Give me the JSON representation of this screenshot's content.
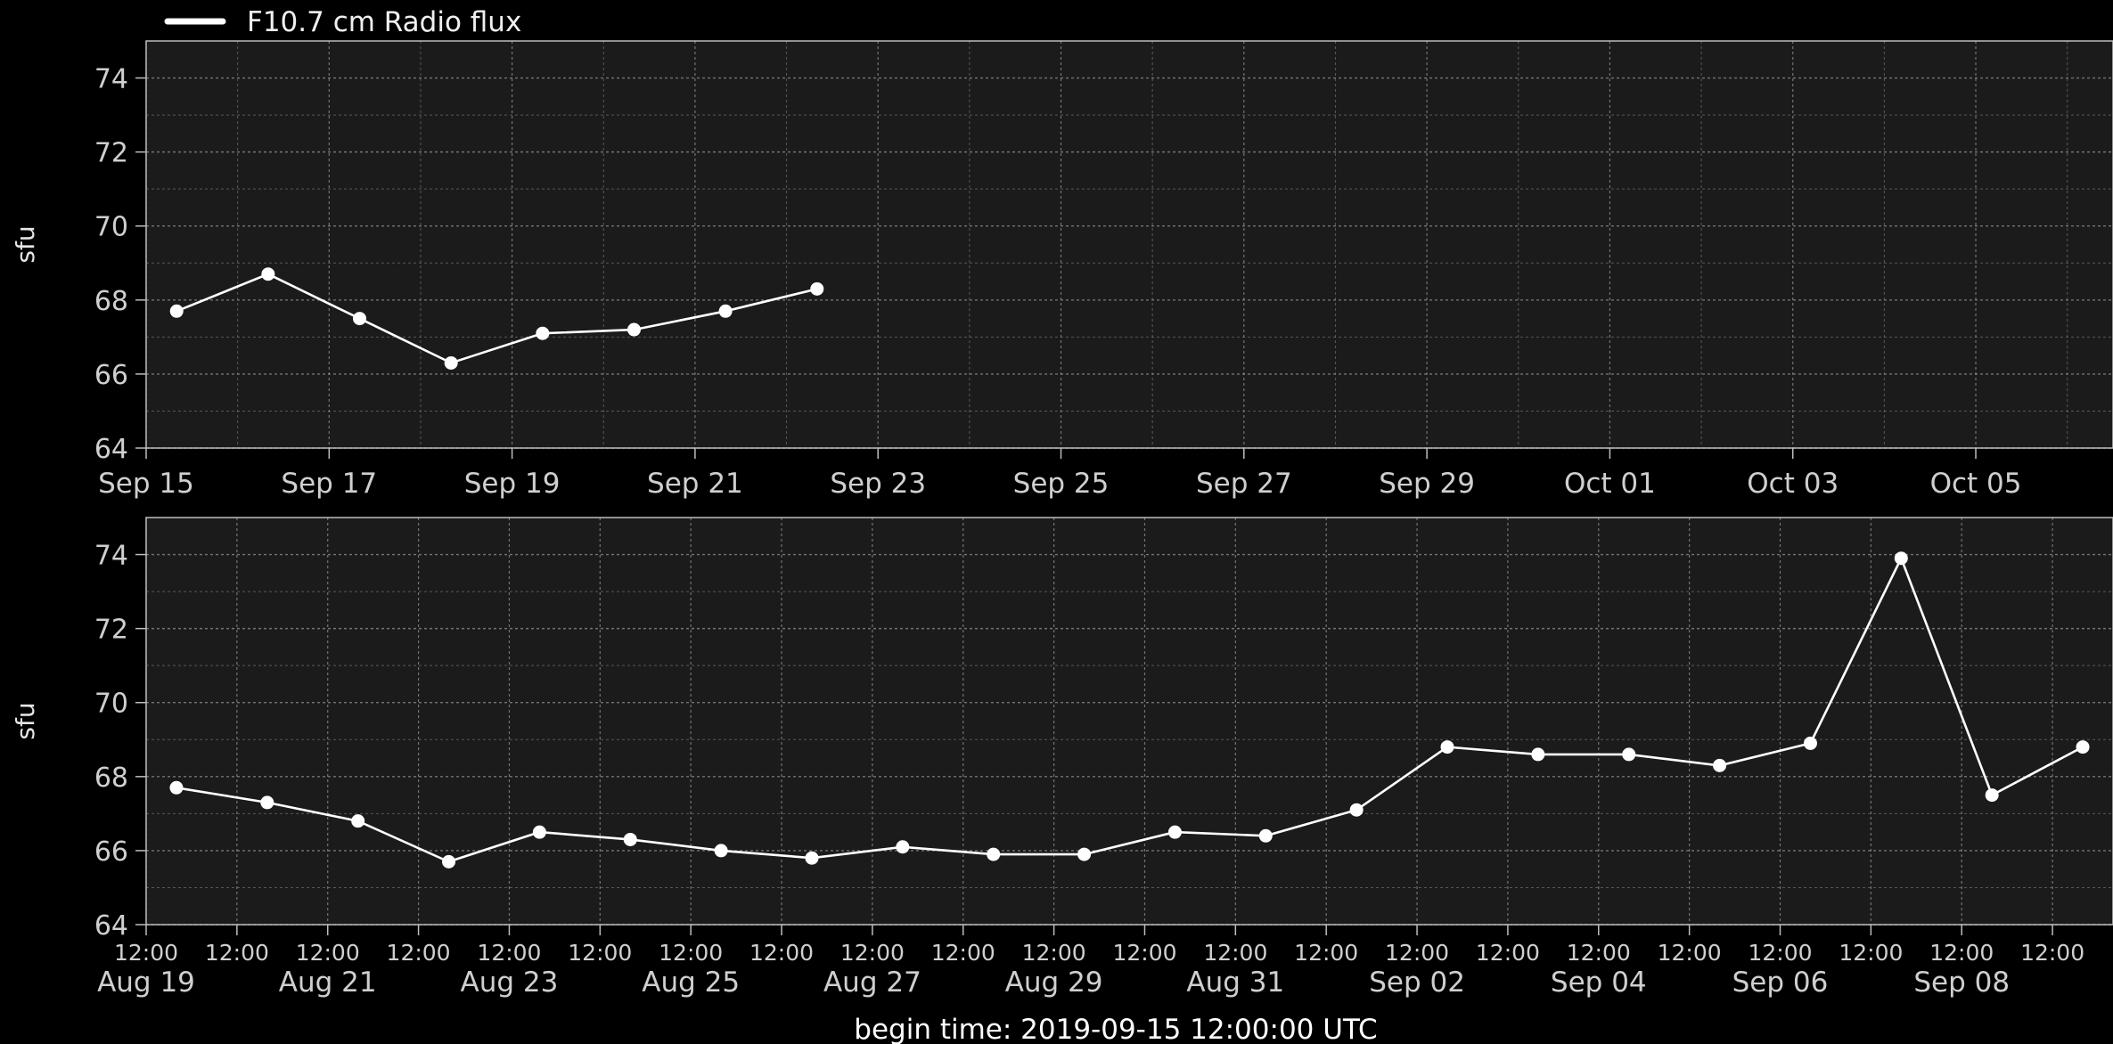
{
  "colors": {
    "background": "#000000",
    "plot_background": "#1b1b1b",
    "grid": "#8a8a8a",
    "series": "#ffffff",
    "frame": "#bdbdbd",
    "tick_text": "#cfcfcf"
  },
  "legend": {
    "label": "F10.7 cm Radio flux"
  },
  "footer": {
    "text": "begin time: 2019-09-15 12:00:00 UTC"
  },
  "chart_data": [
    {
      "type": "line",
      "title": "",
      "xlabel": "",
      "ylabel": "sfu",
      "xlim": [
        "2019-09-15 00:00",
        "2019-10-06 12:00"
      ],
      "ylim": [
        64,
        75
      ],
      "yticks": [
        64,
        66,
        68,
        70,
        72,
        74
      ],
      "xtick_labels": [
        "Sep 15",
        "Sep 17",
        "Sep 19",
        "Sep 21",
        "Sep 23",
        "Sep 25",
        "Sep 27",
        "Sep 29",
        "Oct 01",
        "Oct 03",
        "Oct 05"
      ],
      "grid": true,
      "legend_position": "top-left",
      "series": [
        {
          "name": "F10.7 cm Radio flux",
          "x": [
            "2019-09-15 08:00",
            "2019-09-16 08:00",
            "2019-09-17 08:00",
            "2019-09-18 08:00",
            "2019-09-19 08:00",
            "2019-09-20 08:00",
            "2019-09-21 08:00",
            "2019-09-22 08:00"
          ],
          "values": [
            67.7,
            68.7,
            67.5,
            66.3,
            67.1,
            67.2,
            67.7,
            68.3
          ]
        }
      ]
    },
    {
      "type": "line",
      "title": "",
      "xlabel": "",
      "ylabel": "sfu",
      "xlim": [
        "2019-08-19 00:00",
        "2019-09-09 16:00"
      ],
      "ylim": [
        64,
        75
      ],
      "yticks": [
        64,
        66,
        68,
        70,
        72,
        74
      ],
      "xtick_labels": [
        "12:00\nAug 19",
        "12:00",
        "12:00\nAug 21",
        "12:00",
        "12:00\nAug 23",
        "12:00",
        "12:00\nAug 25",
        "12:00",
        "12:00\nAug 27",
        "12:00",
        "12:00\nAug 29",
        "12:00",
        "12:00\nAug 31",
        "12:00",
        "12:00\nSep 02",
        "12:00",
        "12:00\nSep 04",
        "12:00",
        "12:00\nSep 06",
        "12:00",
        "12:00\nSep 08",
        "12:00"
      ],
      "grid": true,
      "series": [
        {
          "x": [
            "2019-08-19 08:00",
            "2019-08-20 08:00",
            "2019-08-21 08:00",
            "2019-08-22 08:00",
            "2019-08-23 08:00",
            "2019-08-24 08:00",
            "2019-08-25 08:00",
            "2019-08-26 08:00",
            "2019-08-27 08:00",
            "2019-08-28 08:00",
            "2019-08-29 08:00",
            "2019-08-30 08:00",
            "2019-08-31 08:00",
            "2019-09-01 08:00",
            "2019-09-02 08:00",
            "2019-09-03 08:00",
            "2019-09-04 08:00",
            "2019-09-05 08:00",
            "2019-09-06 08:00",
            "2019-09-07 08:00",
            "2019-09-08 08:00",
            "2019-09-09 08:00"
          ],
          "values": [
            67.7,
            67.3,
            66.8,
            65.7,
            66.5,
            66.3,
            66.0,
            65.8,
            66.1,
            65.9,
            65.9,
            66.5,
            66.4,
            67.1,
            68.8,
            68.6,
            68.6,
            68.3,
            68.9,
            73.9,
            67.5,
            68.8
          ]
        }
      ]
    }
  ]
}
